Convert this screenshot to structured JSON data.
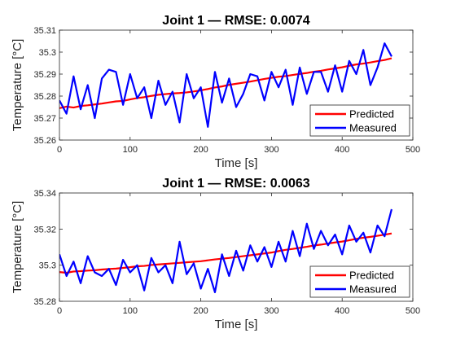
{
  "chart_data": [
    {
      "type": "line",
      "title": "Joint 1 — RMSE: 0.0074",
      "xlabel": "Time [s]",
      "ylabel": "Temperature [°C]",
      "xlim": [
        0,
        500
      ],
      "ylim": [
        35.26,
        35.31
      ],
      "xticks": [
        0,
        100,
        200,
        300,
        400,
        500
      ],
      "yticks": [
        35.26,
        35.27,
        35.28,
        35.29,
        35.3,
        35.31
      ],
      "grid": false,
      "legend_placement": "bottom-right",
      "series": [
        {
          "name": "Predicted",
          "color": "#ff0000",
          "x": [
            0,
            10,
            20,
            30,
            40,
            50,
            60,
            70,
            80,
            90,
            100,
            110,
            120,
            130,
            140,
            150,
            160,
            170,
            180,
            190,
            200,
            210,
            220,
            230,
            240,
            250,
            260,
            270,
            280,
            290,
            300,
            310,
            320,
            330,
            340,
            350,
            360,
            370,
            380,
            390,
            400,
            410,
            420,
            430,
            440,
            450,
            460,
            470
          ],
          "y": [
            35.2745,
            35.2752,
            35.2748,
            35.2755,
            35.2758,
            35.2762,
            35.2766,
            35.2771,
            35.2776,
            35.2778,
            35.2785,
            35.2791,
            35.2795,
            35.2801,
            35.2806,
            35.2809,
            35.2812,
            35.2814,
            35.2817,
            35.2821,
            35.2826,
            35.2832,
            35.2839,
            35.2844,
            35.2851,
            35.2856,
            35.2861,
            35.2866,
            35.2872,
            35.2878,
            35.2883,
            35.2888,
            35.2891,
            35.2896,
            35.2901,
            35.2905,
            35.2911,
            35.2915,
            35.2921,
            35.2926,
            35.2931,
            35.2938,
            35.2944,
            35.2948,
            35.2953,
            35.2959,
            35.2964,
            35.2972
          ]
        },
        {
          "name": "Measured",
          "color": "#0000ff",
          "x": [
            0,
            10,
            20,
            30,
            40,
            50,
            60,
            70,
            80,
            90,
            100,
            110,
            120,
            130,
            140,
            150,
            160,
            170,
            180,
            190,
            200,
            210,
            220,
            230,
            240,
            250,
            260,
            270,
            280,
            290,
            300,
            310,
            320,
            330,
            340,
            350,
            360,
            370,
            380,
            390,
            400,
            410,
            420,
            430,
            440,
            450,
            460,
            470
          ],
          "y": [
            35.278,
            35.272,
            35.289,
            35.274,
            35.285,
            35.27,
            35.288,
            35.292,
            35.291,
            35.276,
            35.29,
            35.279,
            35.284,
            35.27,
            35.287,
            35.276,
            35.282,
            35.268,
            35.29,
            35.279,
            35.284,
            35.266,
            35.291,
            35.277,
            35.288,
            35.275,
            35.281,
            35.29,
            35.289,
            35.278,
            35.291,
            35.284,
            35.292,
            35.276,
            35.293,
            35.281,
            35.291,
            35.291,
            35.282,
            35.294,
            35.282,
            35.296,
            35.29,
            35.301,
            35.285,
            35.293,
            35.304,
            35.298
          ]
        }
      ]
    },
    {
      "type": "line",
      "title": "Joint 1 — RMSE: 0.0063",
      "xlabel": "Time [s]",
      "ylabel": "Temperature [°C]",
      "xlim": [
        0,
        500
      ],
      "ylim": [
        35.28,
        35.34
      ],
      "xticks": [
        0,
        100,
        200,
        300,
        400,
        500
      ],
      "yticks": [
        35.28,
        35.3,
        35.32,
        35.34
      ],
      "grid": false,
      "legend_placement": "bottom-right",
      "series": [
        {
          "name": "Predicted",
          "color": "#ff0000",
          "x": [
            0,
            10,
            20,
            30,
            40,
            50,
            60,
            70,
            80,
            90,
            100,
            110,
            120,
            130,
            140,
            150,
            160,
            170,
            180,
            190,
            200,
            210,
            220,
            230,
            240,
            250,
            260,
            270,
            280,
            290,
            300,
            310,
            320,
            330,
            340,
            350,
            360,
            370,
            380,
            390,
            400,
            410,
            420,
            430,
            440,
            450,
            460,
            470
          ],
          "y": [
            35.2962,
            35.2958,
            35.2965,
            35.2967,
            35.297,
            35.2972,
            35.2976,
            35.2979,
            35.2981,
            35.2985,
            35.2989,
            35.2994,
            35.2996,
            35.3001,
            35.3004,
            35.3007,
            35.301,
            35.3013,
            35.3016,
            35.3019,
            35.3022,
            35.3027,
            35.3032,
            35.3036,
            35.304,
            35.3045,
            35.305,
            35.3055,
            35.306,
            35.3065,
            35.307,
            35.3078,
            35.3085,
            35.309,
            35.3096,
            35.3102,
            35.3109,
            35.3114,
            35.312,
            35.3126,
            35.3131,
            35.3138,
            35.3146,
            35.3152,
            35.3157,
            35.3163,
            35.3169,
            35.3176
          ]
        },
        {
          "name": "Measured",
          "color": "#0000ff",
          "x": [
            0,
            10,
            20,
            30,
            40,
            50,
            60,
            70,
            80,
            90,
            100,
            110,
            120,
            130,
            140,
            150,
            160,
            170,
            180,
            190,
            200,
            210,
            220,
            230,
            240,
            250,
            260,
            270,
            280,
            290,
            300,
            310,
            320,
            330,
            340,
            350,
            360,
            370,
            380,
            390,
            400,
            410,
            420,
            430,
            440,
            450,
            460,
            470
          ],
          "y": [
            35.306,
            35.294,
            35.302,
            35.29,
            35.305,
            35.296,
            35.294,
            35.298,
            35.289,
            35.303,
            35.296,
            35.3,
            35.286,
            35.304,
            35.296,
            35.3,
            35.29,
            35.313,
            35.295,
            35.301,
            35.287,
            35.298,
            35.285,
            35.306,
            35.294,
            35.308,
            35.297,
            35.311,
            35.302,
            35.31,
            35.299,
            35.313,
            35.302,
            35.319,
            35.305,
            35.323,
            35.309,
            35.319,
            35.311,
            35.317,
            35.306,
            35.322,
            35.313,
            35.318,
            35.307,
            35.322,
            35.316,
            35.331
          ]
        }
      ]
    }
  ]
}
